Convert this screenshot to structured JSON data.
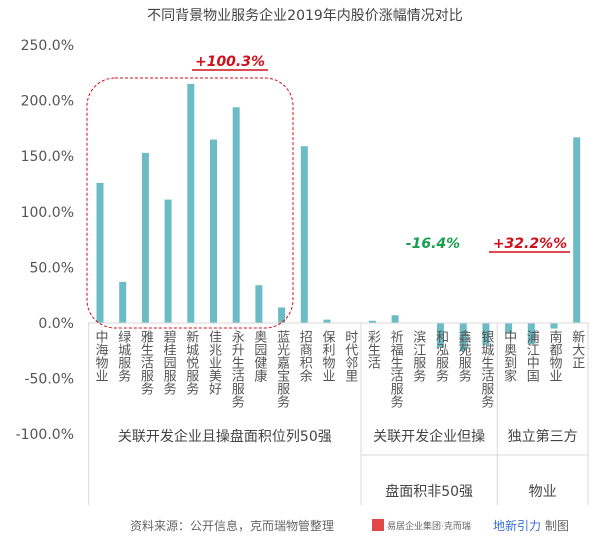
{
  "chart_data": {
    "type": "bar",
    "title": "不同背景物业服务企业2019年内股价涨幅情况对比",
    "ylim": [
      -100,
      250
    ],
    "yticks": [
      "250.0%",
      "200.0%",
      "150.0%",
      "100.0%",
      "50.0%",
      "0.0%",
      "-50.0%",
      "-100.0%"
    ],
    "ytick_values": [
      250,
      200,
      150,
      100,
      50,
      0,
      -50,
      -100
    ],
    "grid": false,
    "bar_color": "#6bbcc4",
    "categories": [
      "中海物业",
      "绿城服务",
      "雅生活服务",
      "碧桂园服务",
      "新城悦服务",
      "佳兆业美好",
      "永升生活服务",
      "奥园健康",
      "蓝光嘉宝服务",
      "招商积余",
      "保利物业",
      "时代邻里",
      "彩生活",
      "祈福生活服务",
      "滨江服务",
      "和泓服务",
      "鑫苑服务",
      "银城生活服务",
      "中奥到家",
      "浦江中国",
      "南都物业",
      "新大正"
    ],
    "values": [
      126,
      37,
      153,
      111,
      215,
      165,
      194,
      34,
      14,
      159,
      3,
      0,
      2,
      7,
      0,
      -22,
      -25,
      -20,
      -9,
      -19,
      -5,
      167
    ],
    "groups": [
      {
        "label": [
          "关联开发企业且操盘面积位列50强"
        ],
        "count": 12
      },
      {
        "label": [
          "关联开发企业但操",
          "盘面积非50强"
        ],
        "count": 6
      },
      {
        "label": [
          "独立第三方",
          "物业"
        ],
        "count": 4
      }
    ],
    "annotations": [
      {
        "text": "+100.3%",
        "color": "#d0101a",
        "underline": true
      },
      {
        "text": "-16.4%",
        "color": "#16a050",
        "underline": false
      },
      {
        "text": "+32.2%%",
        "color": "#d0101a",
        "underline": true
      }
    ]
  },
  "footer": {
    "source": "资料来源：公开信息，克而瑞物管整理",
    "logo_text": "易居企业集团·克而瑞",
    "brand": "地新引力",
    "made": "制图"
  }
}
